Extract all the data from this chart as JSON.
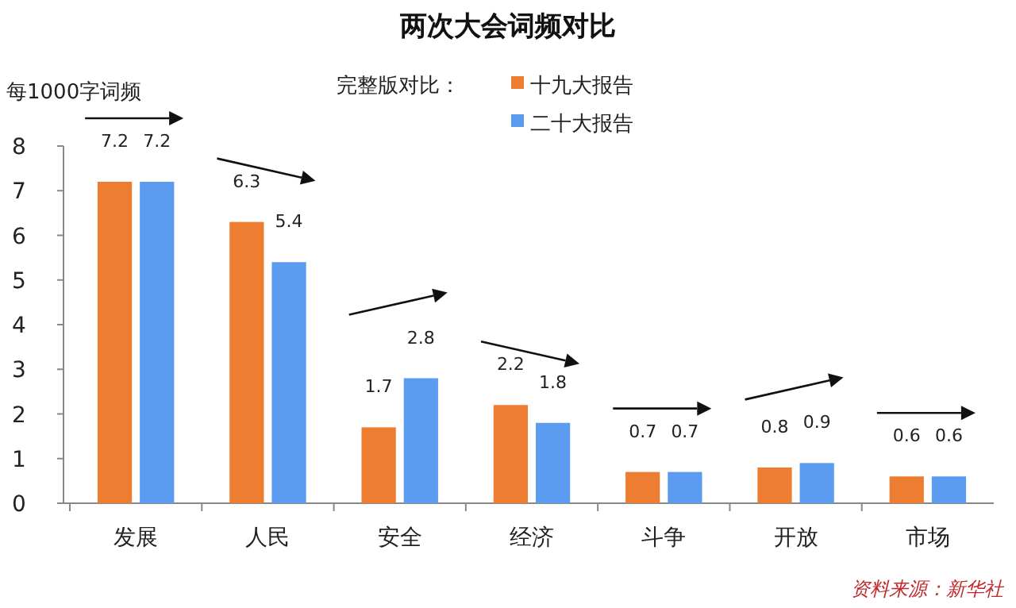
{
  "chart_data": {
    "type": "bar",
    "title": "两次大会词频对比",
    "ylabel": "每1000字词频",
    "legend_title": "完整版对比：",
    "legend": "top right",
    "data_labels": true,
    "categories": [
      "发展",
      "人民",
      "安全",
      "经济",
      "斗争",
      "开放",
      "市场"
    ],
    "series": [
      {
        "name": "十九大报告",
        "color": "#ed7d31",
        "values": [
          7.2,
          6.3,
          1.7,
          2.2,
          0.7,
          0.8,
          0.6
        ]
      },
      {
        "name": "二十大报告",
        "color": "#5b9bf0",
        "values": [
          7.2,
          5.4,
          2.8,
          1.8,
          0.7,
          0.9,
          0.6
        ]
      }
    ],
    "ylim": [
      0,
      8
    ],
    "yticks": [
      0,
      1,
      2,
      3,
      4,
      5,
      6,
      7,
      8
    ],
    "annotations": [
      "资料来源：新华社"
    ]
  }
}
